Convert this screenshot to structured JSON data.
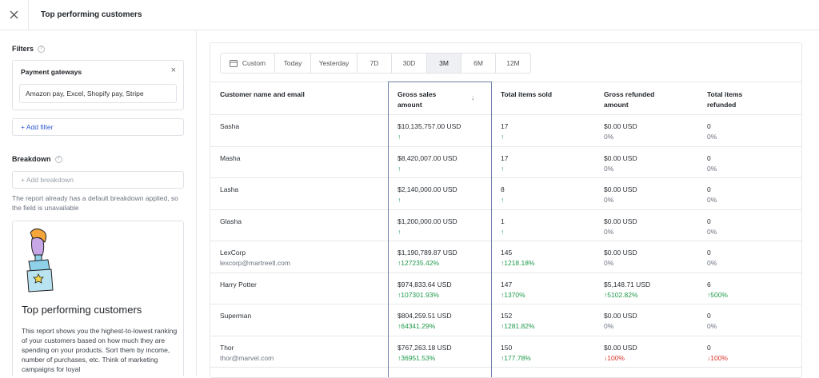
{
  "header": {
    "title": "Top performing customers"
  },
  "sidebar": {
    "filters_label": "Filters",
    "filter_card": {
      "title": "Payment gateways",
      "value": "Amazon pay, Excel, Shopify pay, Stripe"
    },
    "add_filter": "+ Add filter",
    "breakdown_label": "Breakdown",
    "breakdown_placeholder": "+ Add breakdown",
    "breakdown_note": "The report already has a default breakdown applied, so the field is unavailable",
    "info_card": {
      "title": "Top performing customers",
      "body": "This report shows you the highest-to-lowest ranking of your customers based on how much they are spending on your products. Sort them by income, number of purchases, etc. Think of marketing campaigns for loyal"
    }
  },
  "range": {
    "options": [
      "Custom",
      "Today",
      "Yesterday",
      "7D",
      "30D",
      "3M",
      "6M",
      "12M"
    ],
    "selected": "3M"
  },
  "table": {
    "columns": [
      "Customer name and email",
      "Gross sales amount",
      "Total items sold",
      "Gross refunded amount",
      "Total items refunded"
    ],
    "rows": [
      {
        "name": "Sasha",
        "email": "",
        "gross": "$10,135,757.00 USD",
        "gross_change": "↑",
        "items": "17",
        "items_change": "↑",
        "refunded": "$0.00 USD",
        "refunded_change": "0%",
        "items_refunded": "0",
        "items_refunded_change": "0%"
      },
      {
        "name": "Masha",
        "email": "",
        "gross": "$8,420,007.00 USD",
        "gross_change": "↑",
        "items": "17",
        "items_change": "↑",
        "refunded": "$0.00 USD",
        "refunded_change": "0%",
        "items_refunded": "0",
        "items_refunded_change": "0%"
      },
      {
        "name": "Lasha",
        "email": "",
        "gross": "$2,140,000.00 USD",
        "gross_change": "↑",
        "items": "8",
        "items_change": "↑",
        "refunded": "$0.00 USD",
        "refunded_change": "0%",
        "items_refunded": "0",
        "items_refunded_change": "0%"
      },
      {
        "name": "Glasha",
        "email": "",
        "gross": "$1,200,000.00 USD",
        "gross_change": "↑",
        "items": "1",
        "items_change": "↑",
        "refunded": "$0.00 USD",
        "refunded_change": "0%",
        "items_refunded": "0",
        "items_refunded_change": "0%"
      },
      {
        "name": "LexCorp",
        "email": "lexcorp@martreetl.com",
        "gross": "$1,190,789.87 USD",
        "gross_change": "↑127235.42%",
        "items": "145",
        "items_change": "↑1218.18%",
        "refunded": "$0.00 USD",
        "refunded_change": "0%",
        "items_refunded": "0",
        "items_refunded_change": "0%"
      },
      {
        "name": "Harry Potter",
        "email": "",
        "gross": "$974,833.64 USD",
        "gross_change": "↑107301.93%",
        "items": "147",
        "items_change": "↑1370%",
        "refunded": "$5,148.71 USD",
        "refunded_change": "↑5102.82%",
        "items_refunded": "6",
        "items_refunded_change": "↑500%"
      },
      {
        "name": "Superman",
        "email": "",
        "gross": "$804,259.51 USD",
        "gross_change": "↑64341.29%",
        "items": "152",
        "items_change": "↑1281.82%",
        "refunded": "$0.00 USD",
        "refunded_change": "0%",
        "items_refunded": "0",
        "items_refunded_change": "0%"
      },
      {
        "name": "Thor",
        "email": "thor@marvel.com",
        "gross": "$767,263.18 USD",
        "gross_change": "↑36951.53%",
        "items": "150",
        "items_change": "↑177.78%",
        "refunded": "$0.00 USD",
        "refunded_change": "↓100%",
        "items_refunded": "0",
        "items_refunded_change": "↓100%"
      }
    ]
  },
  "colors": {
    "up": "#1f9a4a",
    "down": "#d9342b",
    "accent": "#2f5bd3",
    "highlight_border": "#6e7fa8"
  }
}
